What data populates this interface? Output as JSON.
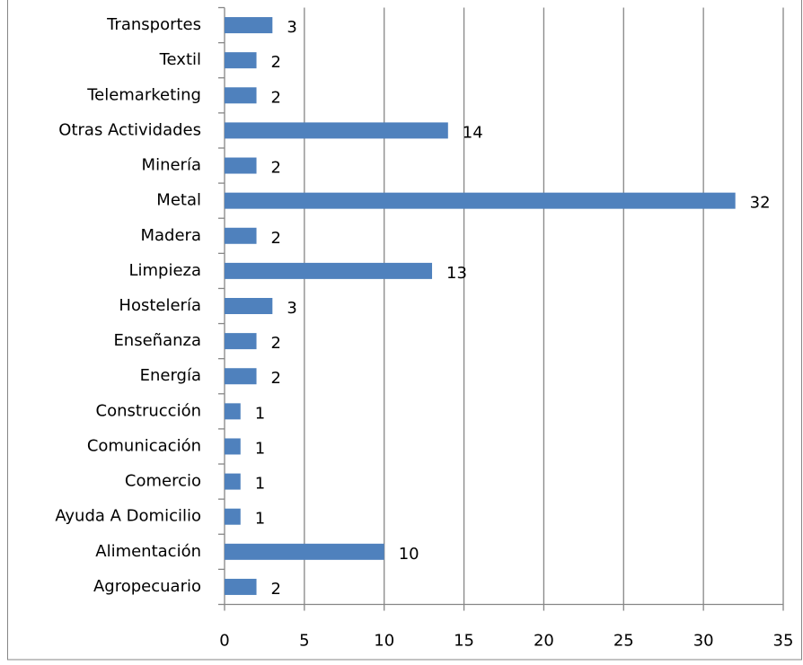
{
  "chart_data": {
    "type": "bar",
    "orientation": "horizontal",
    "categories": [
      "Transportes",
      "Textil",
      "Telemarketing",
      "Otras Actividades",
      "Minería",
      "Metal",
      "Madera",
      "Limpieza",
      "Hostelería",
      "Enseñanza",
      "Energía",
      "Construcción",
      "Comunicación",
      "Comercio",
      "Ayuda A Domicilio",
      "Alimentación",
      "Agropecuario"
    ],
    "values": [
      3,
      2,
      2,
      14,
      2,
      32,
      2,
      13,
      3,
      2,
      2,
      1,
      1,
      1,
      1,
      10,
      2
    ],
    "color": "#4f81bd",
    "xlim": [
      0,
      35
    ],
    "xticks": [
      0,
      5,
      10,
      15,
      20,
      25,
      30,
      35
    ],
    "grid": true
  }
}
